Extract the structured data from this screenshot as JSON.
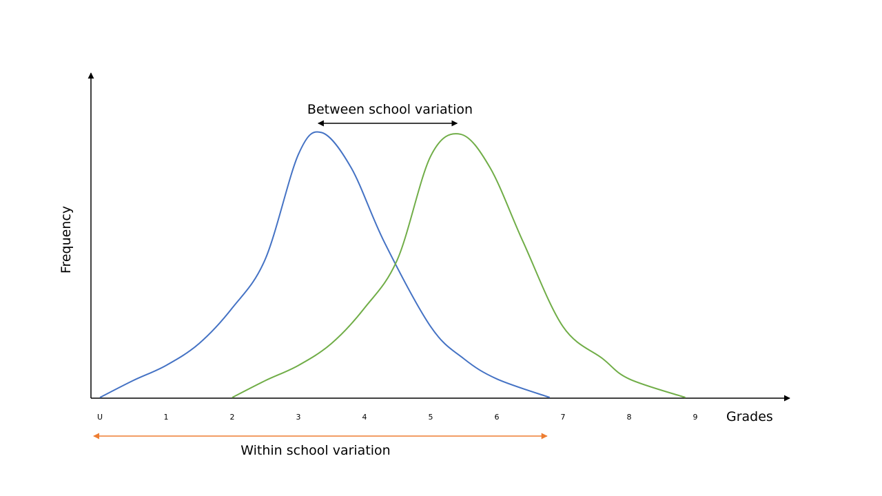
{
  "chart_data": {
    "type": "line",
    "xlabel": "Grades",
    "ylabel": "Frequency",
    "x_tick_labels": [
      "U",
      "1",
      "2",
      "3",
      "4",
      "5",
      "6",
      "7",
      "8",
      "9"
    ],
    "series": [
      {
        "color": "#4472C4",
        "points": [
          [
            0,
            0
          ],
          [
            0.5,
            0.1
          ],
          [
            1,
            0.19
          ],
          [
            1.5,
            0.32
          ],
          [
            2,
            0.53
          ],
          [
            2.5,
            0.82
          ],
          [
            3,
            1.44
          ],
          [
            3.35,
            1.57
          ],
          [
            3.8,
            1.36
          ],
          [
            4.3,
            0.92
          ],
          [
            5,
            0.42
          ],
          [
            5.5,
            0.23
          ],
          [
            6,
            0.11
          ],
          [
            6.8,
            0
          ]
        ]
      },
      {
        "color": "#70AD47",
        "points": [
          [
            2,
            0
          ],
          [
            2.5,
            0.1
          ],
          [
            3,
            0.19
          ],
          [
            3.5,
            0.32
          ],
          [
            4,
            0.53
          ],
          [
            4.5,
            0.82
          ],
          [
            5,
            1.43
          ],
          [
            5.45,
            1.56
          ],
          [
            5.9,
            1.36
          ],
          [
            6.4,
            0.92
          ],
          [
            7,
            0.42
          ],
          [
            7.6,
            0.23
          ],
          [
            8,
            0.11
          ],
          [
            8.85,
            0
          ]
        ]
      }
    ],
    "annotations": [
      {
        "text": "Between school variation",
        "from": 3.3,
        "to": 5.4,
        "color": "#000000"
      },
      {
        "text": "Within school variation",
        "from": 0,
        "to": 6.8,
        "color": "#ED7D31"
      }
    ]
  }
}
